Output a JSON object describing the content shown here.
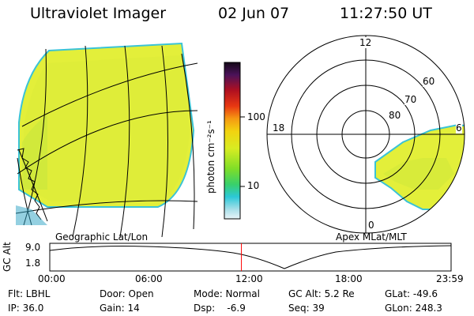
{
  "header": {
    "title": "Ultraviolet Imager",
    "date": "02 Jun 07",
    "time": "11:27:50 UT"
  },
  "left_panel": {
    "caption": "Geographic Lat/Lon"
  },
  "right_panel": {
    "caption": "Apex MLat/MLT",
    "mlt_labels": {
      "top": "12",
      "left": "18",
      "right": "6",
      "bottom": "0"
    },
    "lat_labels": [
      "80",
      "70",
      "60"
    ]
  },
  "colorbar": {
    "unit": "photon cm⁻²s⁻¹",
    "ticks": [
      "100",
      "10"
    ],
    "scale": "log"
  },
  "timeline": {
    "ylabel": "GC Alt",
    "yticks": [
      "9.0",
      "1.8"
    ],
    "xticks": [
      "00:00",
      "06:00",
      "12:00",
      "18:00",
      "23:59"
    ],
    "marker_hour": 11.46,
    "marker_color": "#ff0000"
  },
  "info": {
    "filter": "Flt: LBHL",
    "door": "Door: Open",
    "mode": "Mode: Normal",
    "gc_alt": "GC Alt: 5.2 Re",
    "glat": "GLat: -49.6",
    "ip": "IP: 36.0",
    "gain": "Gain: 14",
    "dsp": "Dsp:    -6.9",
    "seq": "Seq: 39",
    "glon": "GLon: 248.3"
  },
  "colors": {
    "emission": "#e5f03c",
    "emission_edge": "#33c4d8"
  }
}
